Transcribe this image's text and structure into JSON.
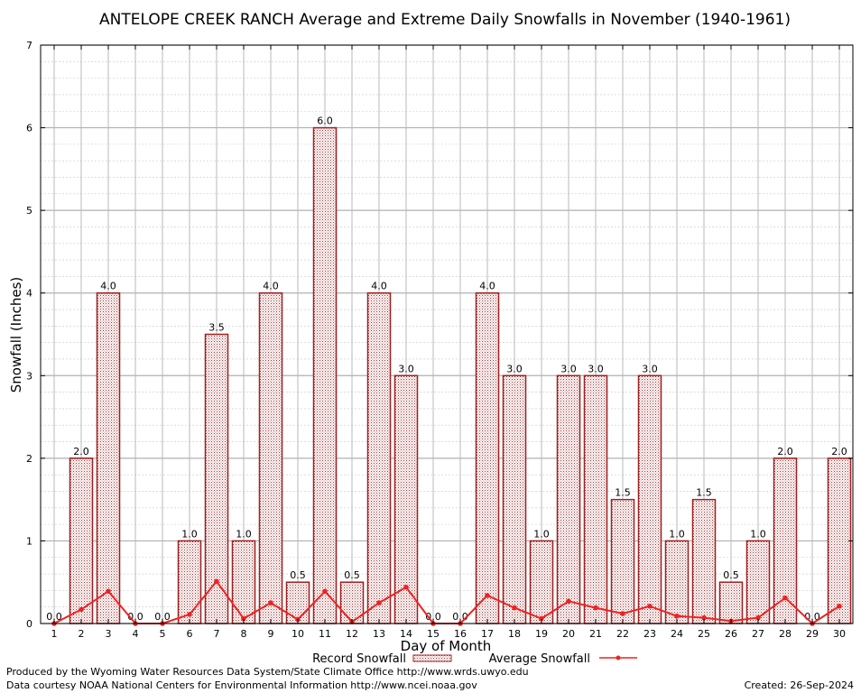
{
  "chart_data": {
    "type": "bar",
    "title": "ANTELOPE CREEK RANCH Average and Extreme Daily Snowfalls in November (1940-1961)",
    "xlabel": "Day of Month",
    "ylabel": "Snowfall (Inches)",
    "ylim": [
      0,
      7
    ],
    "yticks": [
      "0",
      "1",
      "2",
      "3",
      "4",
      "5",
      "6",
      "7"
    ],
    "categories": [
      "1",
      "2",
      "3",
      "4",
      "5",
      "6",
      "7",
      "8",
      "9",
      "10",
      "11",
      "12",
      "13",
      "14",
      "15",
      "16",
      "17",
      "18",
      "19",
      "20",
      "21",
      "22",
      "23",
      "24",
      "25",
      "26",
      "27",
      "28",
      "29",
      "30"
    ],
    "series": [
      {
        "name": "Record Snowfall",
        "type": "bar",
        "color": "#a02020",
        "values": [
          0.0,
          2.0,
          4.0,
          0.0,
          0.0,
          1.0,
          3.5,
          1.0,
          4.0,
          0.5,
          6.0,
          0.5,
          4.0,
          3.0,
          0.0,
          0.0,
          4.0,
          3.0,
          1.0,
          3.0,
          3.0,
          1.5,
          3.0,
          1.0,
          1.5,
          0.5,
          1.0,
          2.0,
          0.0,
          2.0
        ],
        "labels": [
          "0.0",
          "2.0",
          "4.0",
          "0.0",
          "0.0",
          "1.0",
          "3.5",
          "1.0",
          "4.0",
          "0.5",
          "6.0",
          "0.5",
          "4.0",
          "3.0",
          "0.0",
          "0.0",
          "4.0",
          "3.0",
          "1.0",
          "3.0",
          "3.0",
          "1.5",
          "3.0",
          "1.0",
          "1.5",
          "0.5",
          "1.0",
          "2.0",
          "0.0",
          "2.0"
        ]
      },
      {
        "name": "Average Snowfall",
        "type": "line",
        "color": "#ee2222",
        "values": [
          0.0,
          0.17,
          0.39,
          0.0,
          0.0,
          0.11,
          0.51,
          0.06,
          0.25,
          0.05,
          0.39,
          0.02,
          0.25,
          0.44,
          0.0,
          0.0,
          0.34,
          0.19,
          0.06,
          0.27,
          0.19,
          0.12,
          0.21,
          0.09,
          0.07,
          0.03,
          0.07,
          0.31,
          0.0,
          0.21
        ]
      }
    ],
    "grid": true,
    "legend": "bottom-center"
  },
  "footer": {
    "produced_by": "Produced by the Wyoming Water Resources Data System/State Climate Office http://www.wrds.uwyo.edu",
    "courtesy": "Data courtesy NOAA National Centers for Environmental Information http://www.ncei.noaa.gov",
    "created": "Created:  26-Sep-2024"
  }
}
